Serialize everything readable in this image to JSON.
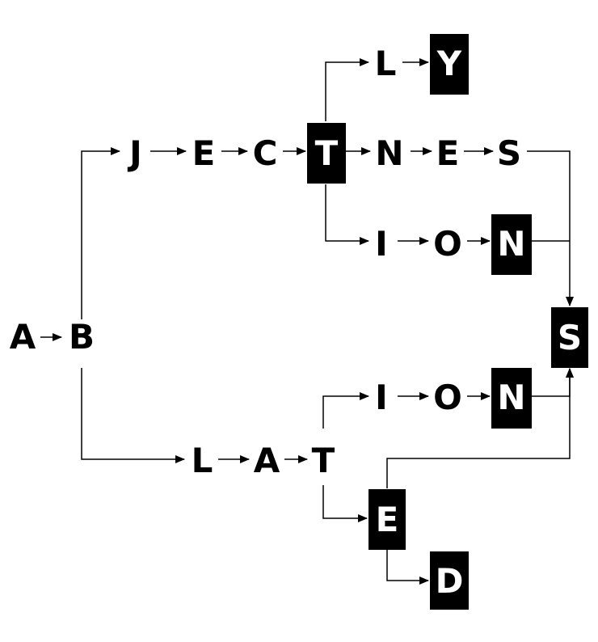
{
  "nodes": {
    "a": "A",
    "b": "B",
    "j": "J",
    "e1": "E",
    "c": "C",
    "t1": "T",
    "ly_l": "L",
    "ly_y": "Y",
    "n1": "N",
    "e2": "E",
    "s1": "S",
    "ion1_i": "I",
    "ion1_o": "O",
    "ion1_n": "N",
    "s_final": "S",
    "l": "L",
    "a2": "A",
    "t2": "T",
    "ion2_i": "I",
    "ion2_o": "O",
    "ion2_n": "N",
    "e_final": "E",
    "d": "D"
  },
  "terminal_nodes": [
    "t1",
    "ly_y",
    "ion1_n",
    "s_final",
    "ion2_n",
    "e_final",
    "d"
  ],
  "colors": {
    "ink": "#000000",
    "terminal_fill": "#000000",
    "terminal_text": "#ffffff",
    "background": "#ffffff"
  }
}
